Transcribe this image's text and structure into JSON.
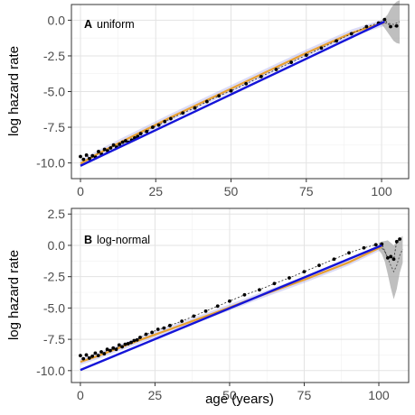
{
  "chart_data": [
    {
      "type": "line",
      "panel_letter": "A",
      "panel_title": "uniform",
      "xlabel": "",
      "ylabel": "log hazard rate",
      "xlim": [
        -3,
        109
      ],
      "ylim": [
        -11.1,
        1.1
      ],
      "xticks": [
        0,
        25,
        50,
        75,
        100
      ],
      "xtick_labels": [
        "0",
        "25",
        "50",
        "75",
        "100"
      ],
      "yticks": [
        0.0,
        -2.5,
        -5.0,
        -7.5,
        -10.0
      ],
      "ytick_labels": [
        "0.0",
        "-2.5",
        "-5.0",
        "-7.5",
        "-10.0"
      ],
      "grid": true,
      "colors": {
        "fit_blue": "#1414d8",
        "fit_orange": "#e8a030",
        "points": "#000000",
        "ribbon": "#a9a9a9"
      },
      "series": [
        {
          "kind": "linear_fit",
          "color": "blue",
          "x": [
            0,
            101
          ],
          "y": [
            -10.2,
            -0.1
          ]
        },
        {
          "kind": "smooth_fit",
          "color": "orange",
          "x": [
            0,
            5,
            10,
            20,
            30,
            45,
            60,
            75,
            90,
            101
          ],
          "y": [
            -10.05,
            -9.45,
            -8.9,
            -7.85,
            -6.8,
            -5.3,
            -3.8,
            -2.3,
            -0.9,
            -0.15
          ]
        },
        {
          "kind": "smooth_ribbon",
          "x": [
            100,
            101,
            102,
            103,
            104,
            105,
            106
          ],
          "lower": [
            -0.3,
            -0.55,
            -0.85,
            -1.15,
            -1.45,
            -1.6,
            -1.65
          ],
          "upper": [
            0.0,
            0.15,
            0.4,
            0.8,
            1.1,
            1.3,
            1.4
          ],
          "line": [
            -0.15,
            -0.2,
            -0.22,
            -0.25,
            -0.3,
            -0.2,
            -0.1
          ]
        },
        {
          "kind": "points",
          "x": [
            0,
            1,
            2,
            3,
            4,
            5,
            6,
            7,
            8,
            9,
            10,
            11,
            12,
            13,
            14,
            15,
            16,
            17,
            18,
            19,
            20,
            22,
            24,
            26,
            28,
            30,
            34,
            38,
            42,
            46,
            50,
            55,
            60,
            65,
            70,
            75,
            80,
            85,
            90,
            95,
            99,
            101,
            103,
            105
          ],
          "y": [
            -9.55,
            -9.75,
            -9.45,
            -9.7,
            -9.5,
            -9.6,
            -9.2,
            -9.4,
            -9.05,
            -9.15,
            -8.95,
            -8.75,
            -8.9,
            -8.7,
            -8.55,
            -8.45,
            -8.55,
            -8.4,
            -8.25,
            -8.15,
            -7.95,
            -7.8,
            -7.5,
            -7.35,
            -7.1,
            -6.9,
            -6.5,
            -6.15,
            -5.7,
            -5.3,
            -4.95,
            -4.45,
            -3.95,
            -3.45,
            -2.95,
            -2.45,
            -1.95,
            -1.45,
            -0.95,
            -0.45,
            -0.2,
            0.05,
            -0.45,
            -0.4
          ]
        }
      ]
    },
    {
      "type": "line",
      "panel_letter": "B",
      "panel_title": "log-normal",
      "xlabel": "age (years)",
      "ylabel": "log hazard rate",
      "xlim": [
        -3,
        110
      ],
      "ylim": [
        -10.95,
        2.95
      ],
      "xticks": [
        0,
        25,
        50,
        75,
        100
      ],
      "xtick_labels": [
        "0",
        "25",
        "50",
        "75",
        "100"
      ],
      "yticks": [
        2.5,
        0.0,
        -2.5,
        -5.0,
        -7.5,
        -10.0
      ],
      "ytick_labels": [
        "2.5",
        "0.0",
        "-2.5",
        "-5.0",
        "-7.5",
        "-10.0"
      ],
      "grid": true,
      "colors": {
        "fit_blue": "#1414d8",
        "fit_orange": "#e8a030",
        "points": "#000000",
        "ribbon": "#a9a9a9"
      },
      "series": [
        {
          "kind": "linear_fit",
          "color": "blue",
          "x": [
            0,
            101
          ],
          "y": [
            -9.95,
            0.0
          ]
        },
        {
          "kind": "smooth_fit",
          "color": "orange",
          "x": [
            0,
            5,
            10,
            20,
            30,
            45,
            60,
            75,
            90,
            101
          ],
          "y": [
            -9.3,
            -8.9,
            -8.45,
            -7.55,
            -6.7,
            -5.4,
            -4.05,
            -2.75,
            -1.35,
            -0.1
          ]
        },
        {
          "kind": "smooth_ribbon",
          "x": [
            100,
            101,
            102,
            103,
            104,
            105,
            106,
            107,
            108
          ],
          "lower": [
            -0.4,
            -0.7,
            -1.3,
            -2.3,
            -3.4,
            -4.3,
            -3.5,
            -2.2,
            -1.4
          ],
          "upper": [
            0.2,
            0.3,
            0.35,
            0.4,
            0.2,
            0.0,
            0.3,
            0.55,
            0.75
          ],
          "line": [
            -0.1,
            -0.2,
            -0.5,
            -1.0,
            -1.6,
            -2.1,
            -1.6,
            -0.8,
            -0.3
          ]
        },
        {
          "kind": "points",
          "x": [
            0,
            1,
            2,
            3,
            4,
            5,
            6,
            7,
            8,
            9,
            10,
            11,
            12,
            13,
            14,
            15,
            16,
            17,
            18,
            19,
            20,
            22,
            24,
            26,
            28,
            30,
            34,
            38,
            42,
            46,
            50,
            55,
            60,
            65,
            70,
            75,
            80,
            85,
            90,
            95,
            99,
            101,
            103,
            104,
            105,
            106,
            107
          ],
          "y": [
            -8.8,
            -9.05,
            -8.75,
            -9.0,
            -8.85,
            -8.6,
            -8.8,
            -8.5,
            -8.65,
            -8.3,
            -8.4,
            -8.2,
            -8.3,
            -7.95,
            -8.1,
            -7.9,
            -7.85,
            -7.75,
            -7.6,
            -7.55,
            -7.35,
            -7.1,
            -6.95,
            -6.7,
            -6.6,
            -6.4,
            -6.05,
            -5.65,
            -5.25,
            -4.85,
            -4.45,
            -3.95,
            -3.55,
            -3.05,
            -2.6,
            -2.1,
            -1.6,
            -1.1,
            -0.6,
            -0.2,
            0.05,
            0.1,
            -1.0,
            -0.9,
            -1.1,
            0.3,
            0.5
          ]
        }
      ]
    }
  ]
}
